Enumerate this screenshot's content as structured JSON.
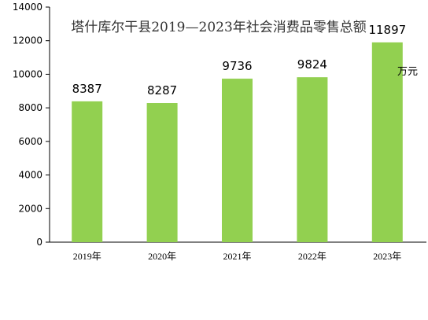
{
  "chart_data": {
    "type": "bar",
    "title": "塔什库尔干县2019—2023年社会消费品零售总额",
    "unit": "万元",
    "categories": [
      "2019年",
      "2020年",
      "2021年",
      "2022年",
      "2023年"
    ],
    "values": [
      8387,
      8287,
      9736,
      9824,
      11897
    ],
    "data_labels": [
      "8387",
      "8287",
      "9736",
      "9824",
      "11897"
    ],
    "ylim": [
      0,
      14000
    ],
    "yticks": [
      "0",
      "2000",
      "4000",
      "6000",
      "8000",
      "10000",
      "12000",
      "14000"
    ],
    "bar_color": "#92D050",
    "grid": false,
    "legend": "none"
  }
}
